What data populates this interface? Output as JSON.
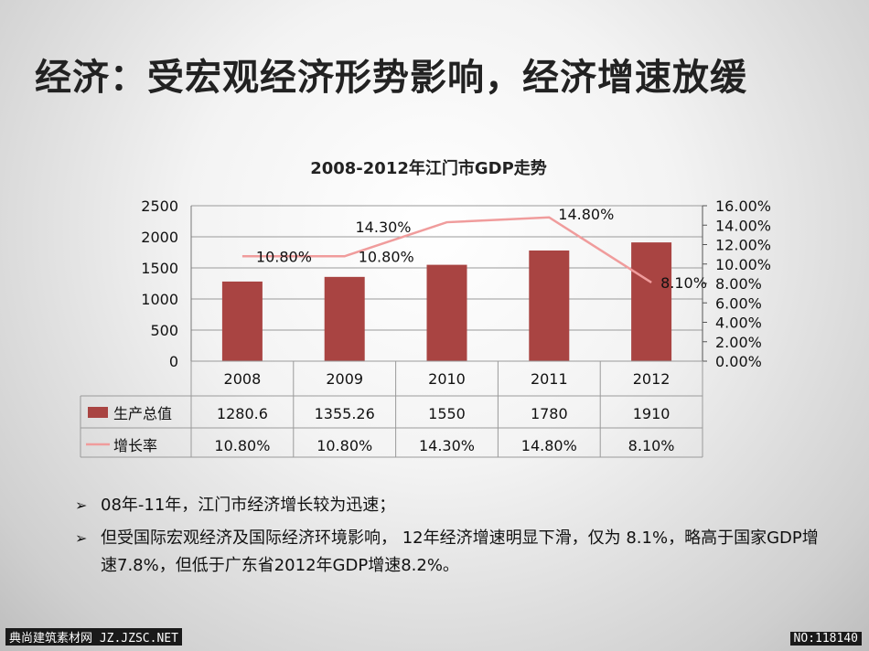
{
  "slide": {
    "title": "经济：受宏观经济形势影响，经济增速放缓"
  },
  "chart_data": {
    "type": "bar",
    "title": "2008-2012年江门市GDP走势",
    "categories": [
      "2008",
      "2009",
      "2010",
      "2011",
      "2012"
    ],
    "series": [
      {
        "name": "生产总值",
        "kind": "bar",
        "axis": "left",
        "color": "#a94442",
        "values": [
          1280.6,
          1355.26,
          1550,
          1780,
          1910
        ],
        "table_labels": [
          "1280.6",
          "1355.26",
          "1550",
          "1780",
          "1910"
        ]
      },
      {
        "name": "增长率",
        "kind": "line",
        "axis": "right",
        "color": "#f09c9c",
        "values": [
          10.8,
          10.8,
          14.3,
          14.8,
          8.1
        ],
        "labels": [
          "10.80%",
          "10.80%",
          "14.30%",
          "14.80%",
          "8.10%"
        ]
      }
    ],
    "ylim_left": [
      0,
      2500
    ],
    "yticks_left": [
      "0",
      "500",
      "1000",
      "1500",
      "2000",
      "2500"
    ],
    "ylim_right": [
      0,
      16
    ],
    "yticks_right": [
      "0.00%",
      "2.00%",
      "4.00%",
      "6.00%",
      "8.00%",
      "10.00%",
      "12.00%",
      "14.00%",
      "16.00%"
    ],
    "grid": true,
    "legend": "data-table"
  },
  "bullets": [
    "08年-11年，江门市经济增长较为迅速；",
    "但受国际宏观经济及国际经济环境影响， 12年经济增速明显下滑，仅为 8.1%，略高于国家GDP增速7.8%，但低于广东省2012年GDP增速8.2%。"
  ],
  "bullet_marker": "➢",
  "watermark": {
    "left": "典尚建筑素材网 JZ.JZSC.NET",
    "right": "NO:118140"
  }
}
